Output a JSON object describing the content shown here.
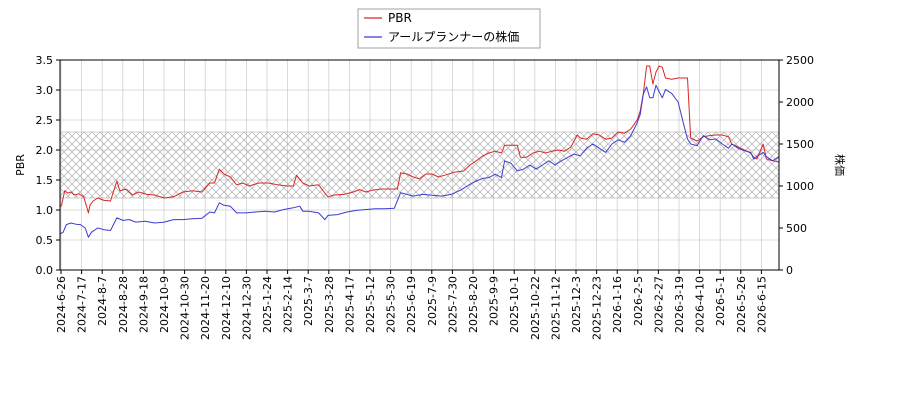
{
  "chart_data": {
    "type": "line",
    "legend": {
      "placement": "top-center",
      "entries": [
        "PBR",
        "アールプランナーの株価"
      ]
    },
    "y_left": {
      "label": "PBR",
      "range": [
        0,
        3.5
      ],
      "ticks": [
        "0.0",
        "0.5",
        "1.0",
        "1.5",
        "2.0",
        "2.5",
        "3.0",
        "3.5"
      ]
    },
    "y_right": {
      "label": "株価",
      "range": [
        0,
        2500
      ],
      "ticks": [
        "0",
        "500",
        "1000",
        "1500",
        "2000",
        "2500"
      ]
    },
    "x_ticks": [
      "2024-6-26",
      "2024-7-17",
      "2024-8-7",
      "2024-8-28",
      "2024-9-18",
      "2024-10-9",
      "2024-10-30",
      "2024-11-20",
      "2024-12-10",
      "2024-12-30",
      "2025-1-24",
      "2025-2-14",
      "2025-3-7",
      "2025-3-28",
      "2025-4-17",
      "2025-5-12",
      "2025-5-30",
      "2025-6-19",
      "2025-7-9",
      "2025-7-30",
      "2025-8-20",
      "2025-9-9",
      "2025-10-1",
      "2025-10-22",
      "2025-11-12",
      "2025-12-3",
      "2025-12-23",
      "2026-1-16",
      "2026-2-5",
      "2026-2-27",
      "2026-3-19",
      "2026-4-10",
      "2026-5-1",
      "2026-5-26",
      "2026-6-15"
    ],
    "grid": true,
    "band": {
      "axis": "left",
      "range": [
        1.2,
        2.3
      ],
      "style": "cross-hatch"
    },
    "series": [
      {
        "name": "PBR",
        "axis": "left",
        "color": "#d62728",
        "points": [
          [
            0,
            1.05
          ],
          [
            1,
            1.08
          ],
          [
            3,
            1.32
          ],
          [
            5,
            1.28
          ],
          [
            7,
            1.3
          ],
          [
            9,
            1.25
          ],
          [
            12,
            1.27
          ],
          [
            15,
            1.22
          ],
          [
            17,
            1.05
          ],
          [
            18,
            0.95
          ],
          [
            19,
            1.08
          ],
          [
            21,
            1.15
          ],
          [
            24,
            1.2
          ],
          [
            28,
            1.16
          ],
          [
            32,
            1.15
          ],
          [
            36,
            1.48
          ],
          [
            38,
            1.32
          ],
          [
            42,
            1.35
          ],
          [
            46,
            1.25
          ],
          [
            50,
            1.3
          ],
          [
            55,
            1.26
          ],
          [
            60,
            1.25
          ],
          [
            66,
            1.2
          ],
          [
            72,
            1.22
          ],
          [
            78,
            1.3
          ],
          [
            84,
            1.32
          ],
          [
            90,
            1.3
          ],
          [
            95,
            1.45
          ],
          [
            98,
            1.45
          ],
          [
            101,
            1.68
          ],
          [
            104,
            1.6
          ],
          [
            108,
            1.55
          ],
          [
            112,
            1.42
          ],
          [
            116,
            1.45
          ],
          [
            120,
            1.4
          ],
          [
            126,
            1.45
          ],
          [
            132,
            1.45
          ],
          [
            138,
            1.42
          ],
          [
            144,
            1.4
          ],
          [
            148,
            1.4
          ],
          [
            150,
            1.58
          ],
          [
            154,
            1.45
          ],
          [
            158,
            1.4
          ],
          [
            164,
            1.42
          ],
          [
            168,
            1.28
          ],
          [
            170,
            1.22
          ],
          [
            174,
            1.25
          ],
          [
            180,
            1.26
          ],
          [
            186,
            1.3
          ],
          [
            190,
            1.34
          ],
          [
            194,
            1.3
          ],
          [
            198,
            1.33
          ],
          [
            204,
            1.35
          ],
          [
            210,
            1.35
          ],
          [
            214,
            1.35
          ],
          [
            216,
            1.62
          ],
          [
            220,
            1.6
          ],
          [
            224,
            1.55
          ],
          [
            228,
            1.52
          ],
          [
            232,
            1.6
          ],
          [
            236,
            1.6
          ],
          [
            240,
            1.55
          ],
          [
            244,
            1.58
          ],
          [
            250,
            1.63
          ],
          [
            256,
            1.65
          ],
          [
            260,
            1.75
          ],
          [
            264,
            1.82
          ],
          [
            268,
            1.9
          ],
          [
            272,
            1.95
          ],
          [
            276,
            1.98
          ],
          [
            280,
            1.95
          ],
          [
            282,
            2.08
          ],
          [
            286,
            2.08
          ],
          [
            290,
            2.08
          ],
          [
            292,
            1.88
          ],
          [
            296,
            1.88
          ],
          [
            300,
            1.95
          ],
          [
            304,
            1.98
          ],
          [
            308,
            1.95
          ],
          [
            312,
            1.98
          ],
          [
            316,
            2.0
          ],
          [
            320,
            1.98
          ],
          [
            324,
            2.05
          ],
          [
            328,
            2.25
          ],
          [
            330,
            2.2
          ],
          [
            334,
            2.18
          ],
          [
            338,
            2.27
          ],
          [
            342,
            2.25
          ],
          [
            346,
            2.18
          ],
          [
            350,
            2.2
          ],
          [
            354,
            2.3
          ],
          [
            358,
            2.28
          ],
          [
            362,
            2.35
          ],
          [
            366,
            2.5
          ],
          [
            368,
            2.65
          ],
          [
            370,
            2.95
          ],
          [
            372,
            3.4
          ],
          [
            374,
            3.4
          ],
          [
            376,
            3.1
          ],
          [
            378,
            3.3
          ],
          [
            380,
            3.4
          ],
          [
            382,
            3.38
          ],
          [
            384,
            3.2
          ],
          [
            388,
            3.18
          ],
          [
            392,
            3.2
          ],
          [
            396,
            3.2
          ],
          [
            398,
            3.2
          ],
          [
            400,
            2.2
          ],
          [
            404,
            2.15
          ],
          [
            408,
            2.22
          ],
          [
            412,
            2.24
          ],
          [
            416,
            2.25
          ],
          [
            420,
            2.25
          ],
          [
            424,
            2.22
          ],
          [
            426,
            2.1
          ],
          [
            430,
            2.05
          ],
          [
            434,
            2.0
          ],
          [
            438,
            1.95
          ],
          [
            440,
            1.88
          ],
          [
            442,
            1.85
          ],
          [
            446,
            2.1
          ],
          [
            448,
            1.85
          ],
          [
            452,
            1.82
          ],
          [
            456,
            1.8
          ]
        ]
      },
      {
        "name": "アールプランナーの株価",
        "axis": "right",
        "color": "#3b3bd4",
        "points": [
          [
            0,
            430
          ],
          [
            2,
            450
          ],
          [
            4,
            540
          ],
          [
            7,
            560
          ],
          [
            10,
            545
          ],
          [
            13,
            540
          ],
          [
            16,
            500
          ],
          [
            18,
            390
          ],
          [
            20,
            450
          ],
          [
            24,
            500
          ],
          [
            28,
            480
          ],
          [
            32,
            470
          ],
          [
            36,
            620
          ],
          [
            40,
            590
          ],
          [
            44,
            600
          ],
          [
            48,
            570
          ],
          [
            54,
            580
          ],
          [
            60,
            560
          ],
          [
            66,
            570
          ],
          [
            72,
            600
          ],
          [
            78,
            600
          ],
          [
            84,
            610
          ],
          [
            90,
            615
          ],
          [
            95,
            690
          ],
          [
            98,
            680
          ],
          [
            101,
            800
          ],
          [
            104,
            770
          ],
          [
            108,
            760
          ],
          [
            112,
            680
          ],
          [
            118,
            680
          ],
          [
            124,
            690
          ],
          [
            130,
            700
          ],
          [
            136,
            690
          ],
          [
            142,
            720
          ],
          [
            148,
            740
          ],
          [
            152,
            760
          ],
          [
            154,
            700
          ],
          [
            158,
            700
          ],
          [
            164,
            680
          ],
          [
            168,
            600
          ],
          [
            170,
            650
          ],
          [
            176,
            660
          ],
          [
            182,
            690
          ],
          [
            188,
            710
          ],
          [
            194,
            720
          ],
          [
            200,
            730
          ],
          [
            206,
            730
          ],
          [
            212,
            735
          ],
          [
            216,
            920
          ],
          [
            220,
            900
          ],
          [
            224,
            880
          ],
          [
            230,
            900
          ],
          [
            236,
            890
          ],
          [
            242,
            880
          ],
          [
            248,
            900
          ],
          [
            254,
            950
          ],
          [
            260,
            1020
          ],
          [
            264,
            1060
          ],
          [
            268,
            1090
          ],
          [
            272,
            1100
          ],
          [
            276,
            1140
          ],
          [
            280,
            1100
          ],
          [
            282,
            1300
          ],
          [
            286,
            1270
          ],
          [
            290,
            1180
          ],
          [
            294,
            1200
          ],
          [
            298,
            1250
          ],
          [
            302,
            1200
          ],
          [
            306,
            1250
          ],
          [
            310,
            1300
          ],
          [
            314,
            1250
          ],
          [
            318,
            1300
          ],
          [
            322,
            1340
          ],
          [
            326,
            1380
          ],
          [
            330,
            1360
          ],
          [
            334,
            1450
          ],
          [
            338,
            1500
          ],
          [
            342,
            1450
          ],
          [
            346,
            1400
          ],
          [
            350,
            1500
          ],
          [
            354,
            1550
          ],
          [
            358,
            1520
          ],
          [
            362,
            1600
          ],
          [
            366,
            1750
          ],
          [
            368,
            1850
          ],
          [
            370,
            2100
          ],
          [
            372,
            2180
          ],
          [
            374,
            2050
          ],
          [
            376,
            2050
          ],
          [
            378,
            2200
          ],
          [
            380,
            2120
          ],
          [
            382,
            2050
          ],
          [
            384,
            2150
          ],
          [
            388,
            2100
          ],
          [
            392,
            2000
          ],
          [
            396,
            1700
          ],
          [
            398,
            1560
          ],
          [
            400,
            1500
          ],
          [
            404,
            1480
          ],
          [
            408,
            1600
          ],
          [
            412,
            1550
          ],
          [
            416,
            1560
          ],
          [
            420,
            1500
          ],
          [
            424,
            1450
          ],
          [
            426,
            1500
          ],
          [
            430,
            1450
          ],
          [
            434,
            1420
          ],
          [
            438,
            1400
          ],
          [
            440,
            1320
          ],
          [
            442,
            1350
          ],
          [
            446,
            1400
          ],
          [
            448,
            1350
          ],
          [
            452,
            1300
          ],
          [
            456,
            1350
          ]
        ]
      }
    ]
  }
}
